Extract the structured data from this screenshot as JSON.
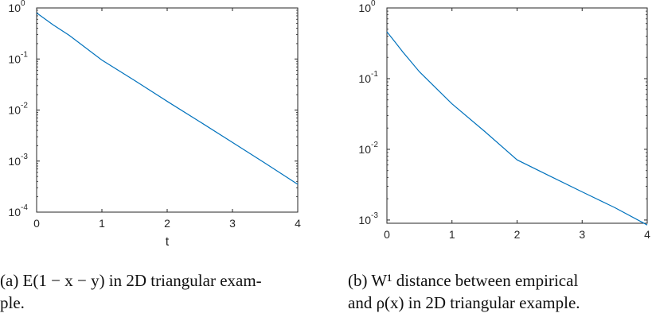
{
  "chart_data": [
    {
      "type": "line",
      "yscale": "log",
      "xlim": [
        0,
        4
      ],
      "ylim": [
        0.0001,
        1
      ],
      "xticks": [
        0,
        1,
        2,
        3,
        4
      ],
      "xtick_labels": [
        "0",
        "1",
        "2",
        "3",
        "4"
      ],
      "yticks": [
        0.0001,
        0.001,
        0.01,
        0.1,
        1
      ],
      "ytick_labels": [
        {
          "base": "10",
          "exp": "-4"
        },
        {
          "base": "10",
          "exp": "-3"
        },
        {
          "base": "10",
          "exp": "-2"
        },
        {
          "base": "10",
          "exp": "-1"
        },
        {
          "base": "10",
          "exp": "0"
        }
      ],
      "xlabel": "t",
      "ylabel": "",
      "grid": false,
      "color": "#0072BD",
      "x": [
        0,
        0.25,
        0.5,
        1,
        1.5,
        2,
        2.5,
        3,
        3.5,
        4
      ],
      "y": [
        0.8,
        0.47,
        0.29,
        0.095,
        0.038,
        0.0148,
        0.0059,
        0.00232,
        0.00091,
        0.00035
      ]
    },
    {
      "type": "line",
      "yscale": "log",
      "xlim": [
        0,
        4
      ],
      "ylim": [
        0.0009,
        1
      ],
      "xticks": [
        0,
        1,
        2,
        3,
        4
      ],
      "xtick_labels": [
        "0",
        "1",
        "2",
        "3",
        "4"
      ],
      "yticks": [
        0.001,
        0.01,
        0.1,
        1
      ],
      "ytick_labels": [
        {
          "base": "10",
          "exp": "-3"
        },
        {
          "base": "10",
          "exp": "-2"
        },
        {
          "base": "10",
          "exp": "-1"
        },
        {
          "base": "10",
          "exp": "0"
        }
      ],
      "xlabel": "",
      "ylabel": "",
      "grid": false,
      "color": "#0072BD",
      "x": [
        0,
        0.125,
        0.25,
        0.5,
        1,
        1.5,
        2,
        2.5,
        3,
        3.5,
        4
      ],
      "y": [
        0.46,
        0.33,
        0.235,
        0.125,
        0.044,
        0.018,
        0.0071,
        0.0042,
        0.0025,
        0.0015,
        0.00085
      ]
    }
  ],
  "captions": {
    "a_line1": "(a) E(1 − x − y) in 2D triangular exam-",
    "a_line2": "ple.",
    "b_line1": "(b) W¹ distance between empirical",
    "b_line2": "and ρ(x) in 2D triangular example."
  },
  "colors": {
    "series": "#0072BD",
    "axes": "#262626"
  }
}
